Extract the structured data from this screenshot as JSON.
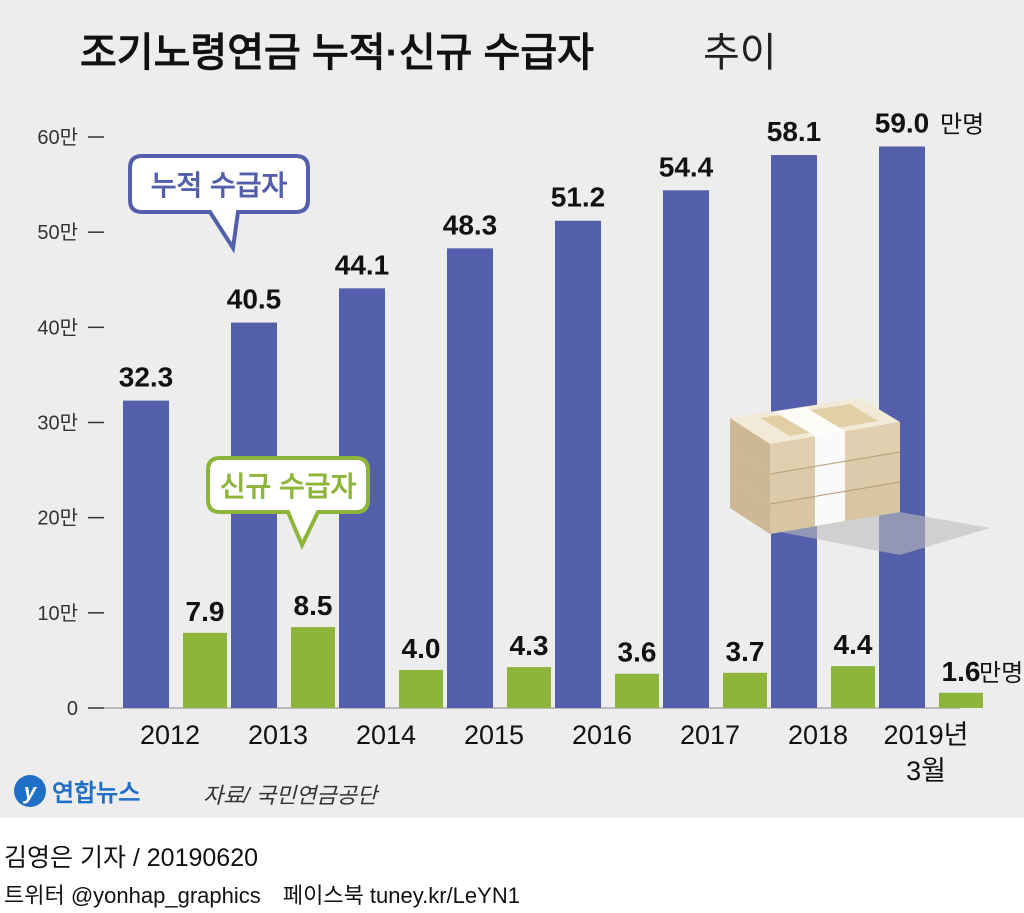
{
  "chart_data": {
    "type": "bar",
    "title_main": "조기노령연금 누적·신규 수급자",
    "title_sub": "추이",
    "categories": [
      "2012",
      "2013",
      "2014",
      "2015",
      "2016",
      "2017",
      "2018",
      "2019년 3월"
    ],
    "category_lines": [
      [
        "2012"
      ],
      [
        "2013"
      ],
      [
        "2014"
      ],
      [
        "2015"
      ],
      [
        "2016"
      ],
      [
        "2017"
      ],
      [
        "2018"
      ],
      [
        "2019년",
        "3월"
      ]
    ],
    "series": [
      {
        "name": "누적 수급자",
        "color": "#535fab",
        "values": [
          32.3,
          40.5,
          44.1,
          48.3,
          51.2,
          54.4,
          58.1,
          59.0
        ],
        "labels": [
          "32.3",
          "40.5",
          "44.1",
          "48.3",
          "51.2",
          "54.4",
          "58.1",
          "59.0"
        ]
      },
      {
        "name": "신규 수급자",
        "color": "#8db53a",
        "values": [
          7.9,
          8.5,
          4.0,
          4.3,
          3.6,
          3.7,
          4.4,
          1.6
        ],
        "labels": [
          "7.9",
          "8.5",
          "4.0",
          "4.3",
          "3.6",
          "3.7",
          "4.4",
          "1.6"
        ]
      }
    ],
    "unit_label": "만명",
    "yticks": [
      {
        "value": 0,
        "label": "0"
      },
      {
        "value": 10,
        "label": "10만"
      },
      {
        "value": 20,
        "label": "20만"
      },
      {
        "value": 30,
        "label": "30만"
      },
      {
        "value": 40,
        "label": "40만"
      },
      {
        "value": 50,
        "label": "50만"
      },
      {
        "value": 60,
        "label": "60만"
      }
    ],
    "ylim": [
      0,
      60
    ],
    "source": "자료/ 국민연금공단",
    "logo_text": "연합뉴스"
  },
  "credit": "김영은 기자 / 20190620",
  "social": {
    "twitter": "트위터 @yonhap_graphics",
    "facebook": "페이스북 tuney.kr/LeYN1"
  }
}
